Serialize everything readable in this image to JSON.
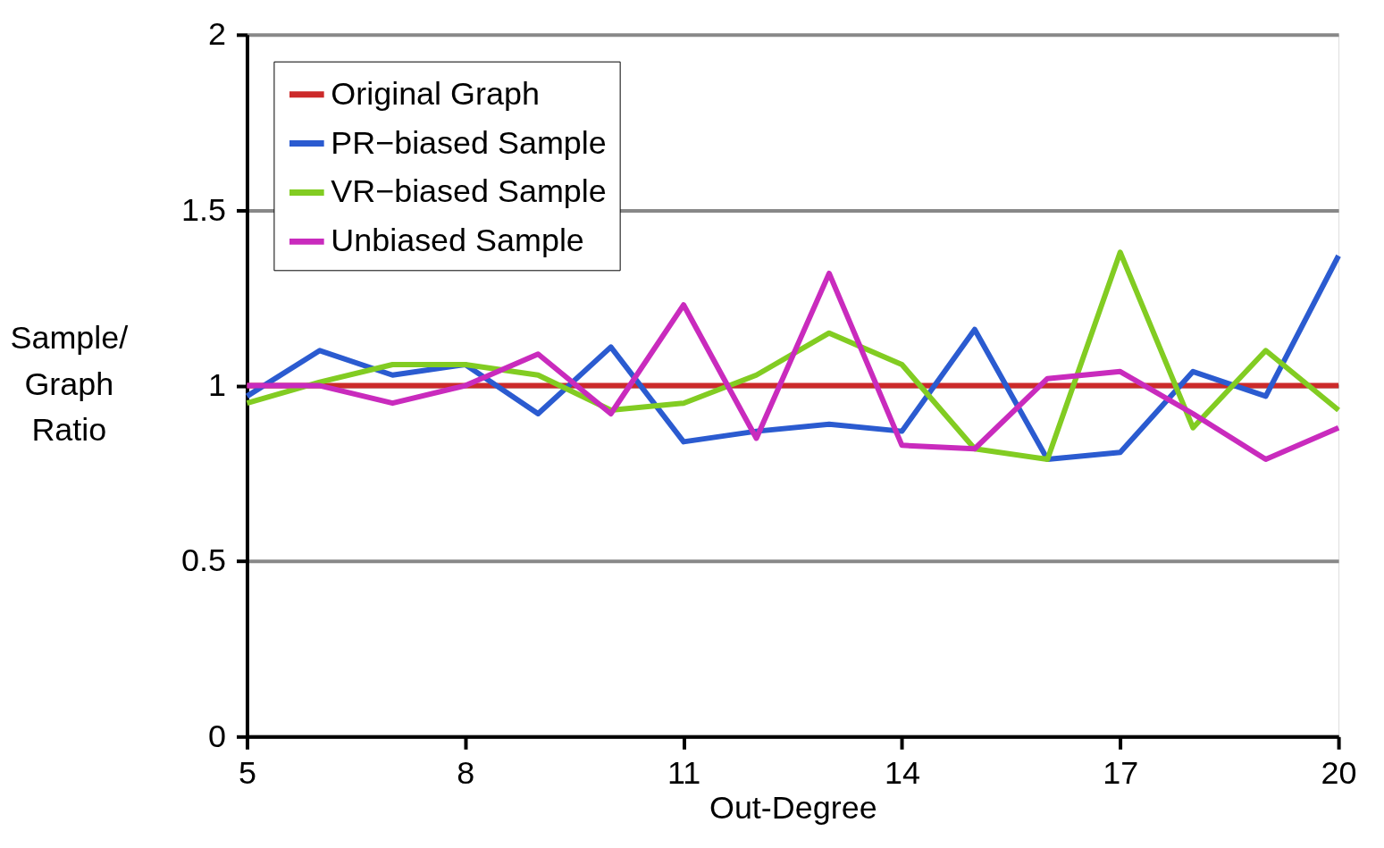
{
  "chart_data": {
    "type": "line",
    "xlabel": "Out-Degree",
    "ylabel": "Sample/ Graph Ratio",
    "x": [
      5,
      6,
      7,
      8,
      9,
      10,
      11,
      12,
      13,
      14,
      15,
      16,
      17,
      18,
      19,
      20
    ],
    "xlim": [
      5,
      20
    ],
    "xticks": [
      5,
      8,
      11,
      14,
      17,
      20
    ],
    "ylim": [
      0,
      2
    ],
    "yticks": [
      0,
      0.5,
      1,
      1.5,
      2
    ],
    "grid": "y",
    "legend": "top left",
    "marker": "none",
    "line_style": "solid",
    "series": [
      {
        "name": "Original Graph",
        "color": "#cc2a2a",
        "values": [
          1,
          1,
          1,
          1,
          1,
          1,
          1,
          1,
          1,
          1,
          1,
          1,
          1,
          1,
          1,
          1
        ]
      },
      {
        "name": "PR−biased Sample",
        "color": "#2b5bd0",
        "values": [
          0.97,
          1.1,
          1.03,
          1.06,
          0.92,
          1.11,
          0.84,
          0.87,
          0.89,
          0.87,
          1.16,
          0.79,
          0.81,
          1.04,
          0.97,
          1.37
        ]
      },
      {
        "name": "VR−biased Sample",
        "color": "#82cc22",
        "values": [
          0.95,
          1.01,
          1.06,
          1.06,
          1.03,
          0.93,
          0.95,
          1.03,
          1.15,
          1.06,
          0.82,
          0.79,
          1.38,
          0.88,
          1.1,
          0.93
        ]
      },
      {
        "name": "Unbiased Sample",
        "color": "#c92bbd",
        "values": [
          1.0,
          1.0,
          0.95,
          1.0,
          1.09,
          0.92,
          1.23,
          0.85,
          1.32,
          0.83,
          0.82,
          1.02,
          1.04,
          0.92,
          0.79,
          0.88
        ]
      }
    ]
  }
}
